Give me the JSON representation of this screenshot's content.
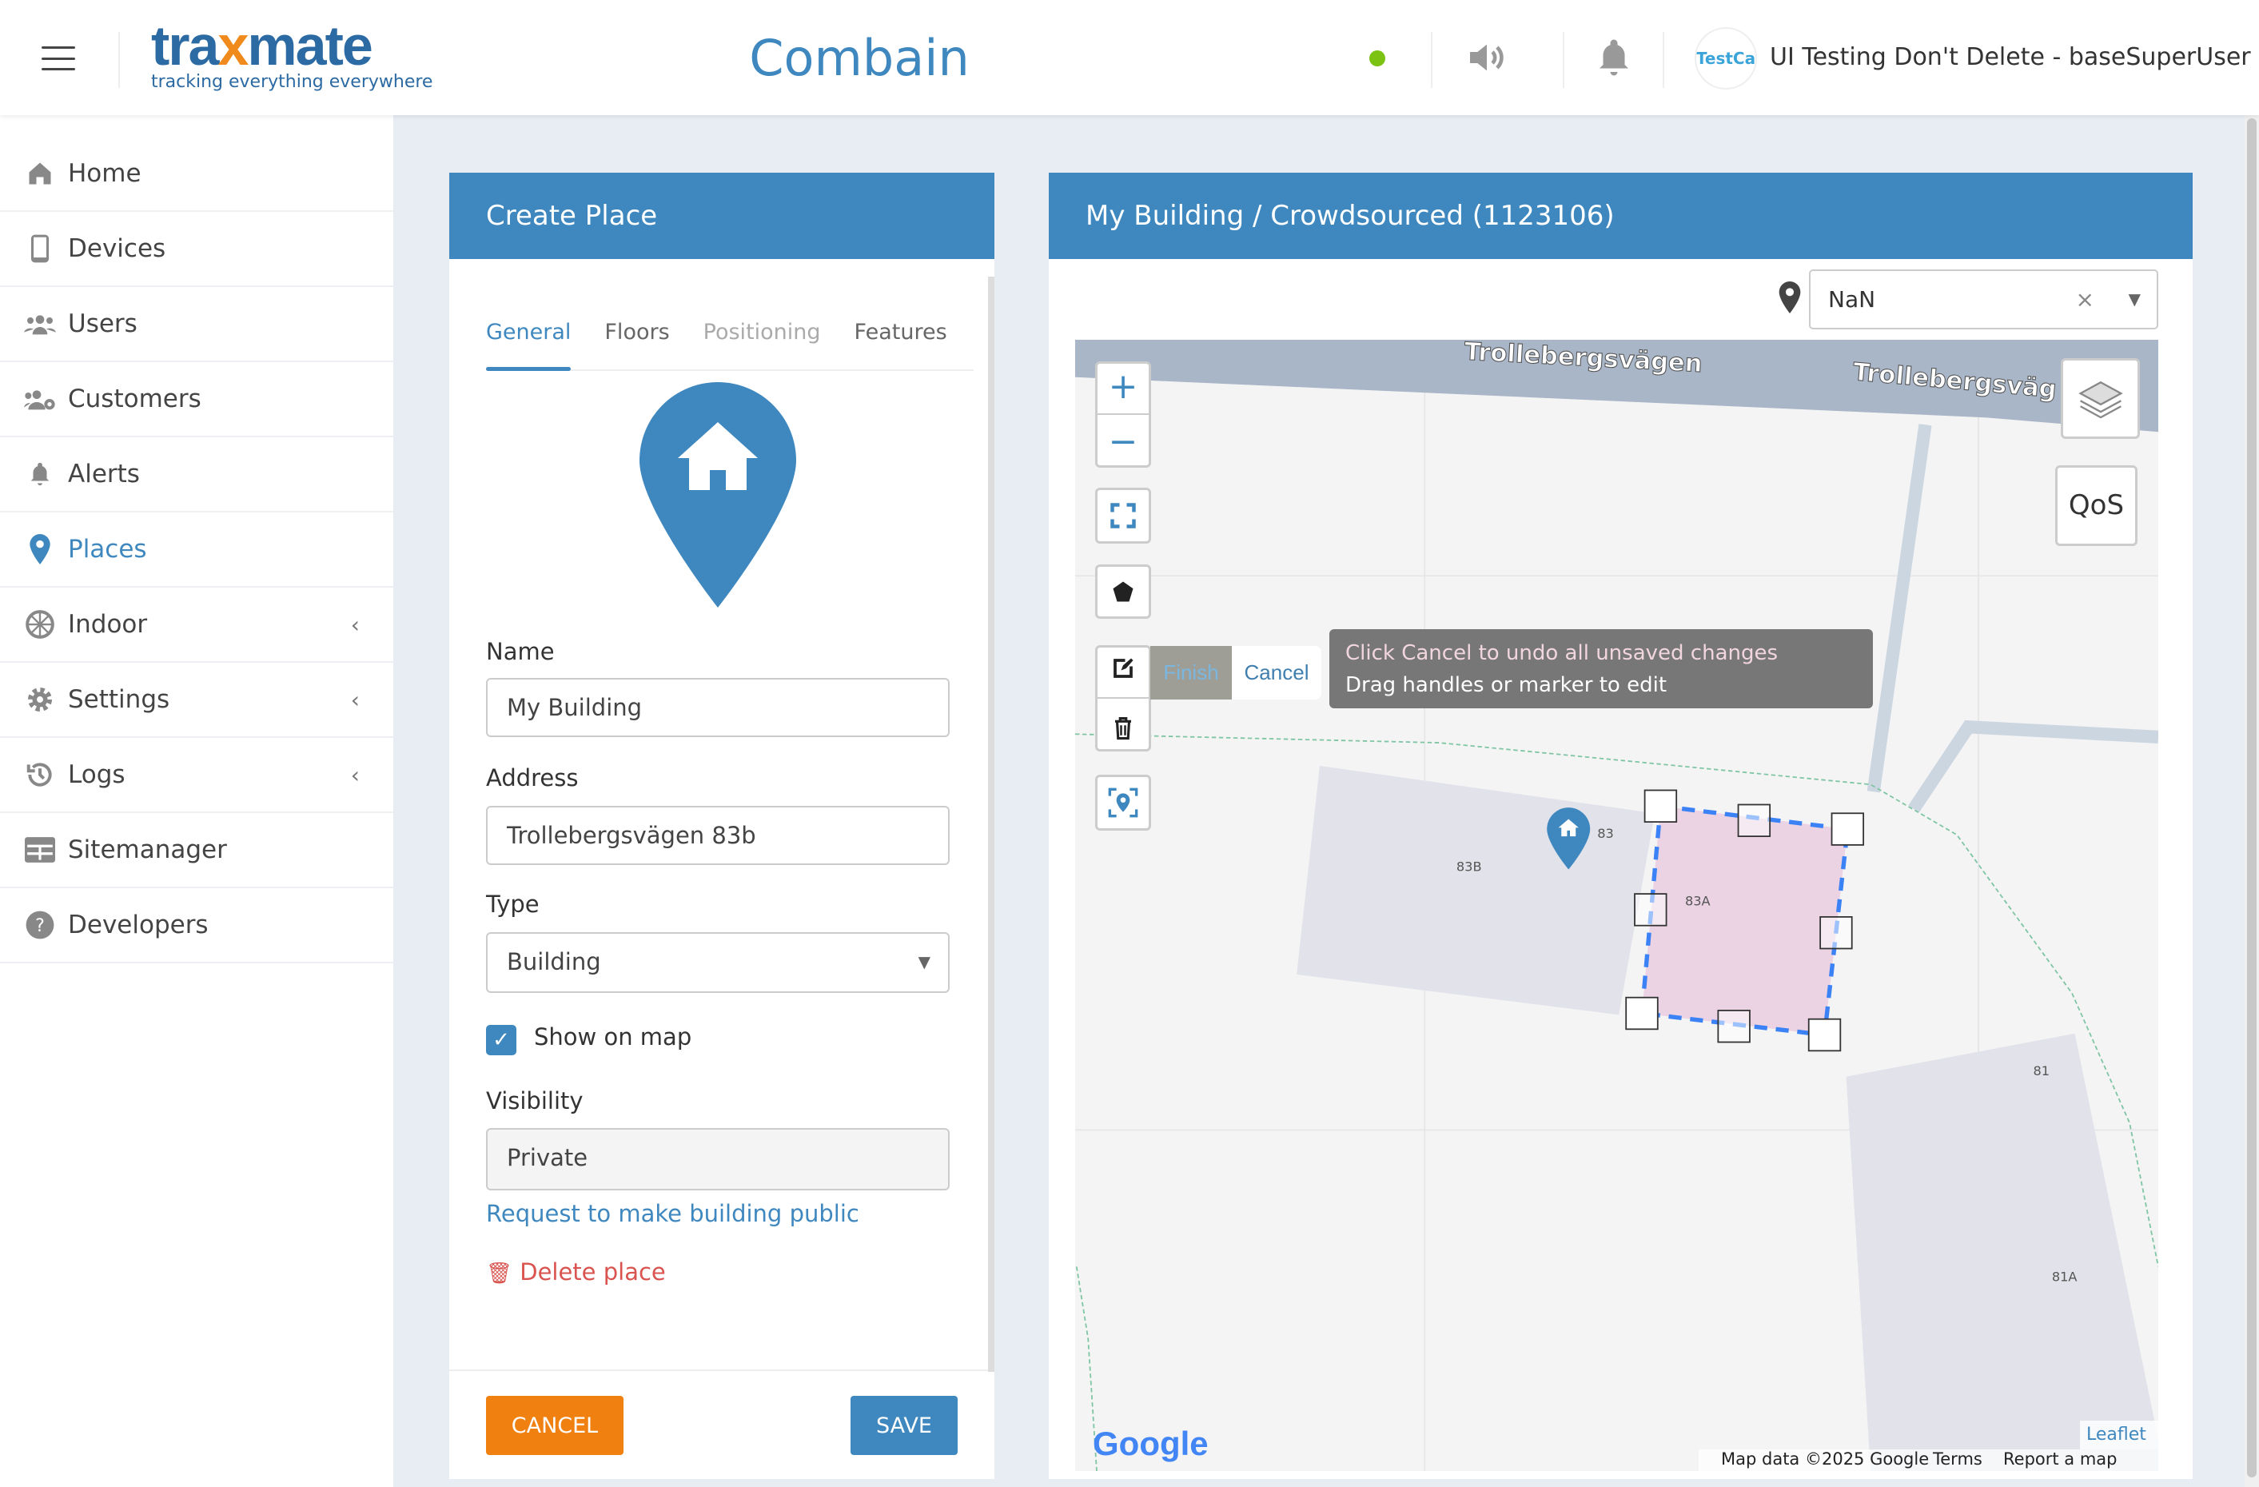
{
  "header": {
    "logo_prefix": "tra",
    "logo_x": "x",
    "logo_suffix": "mate",
    "logo_tagline": "tracking everything everywhere",
    "app_title": "Combain",
    "status_color": "#7cc212",
    "avatar_text": "TestCa",
    "user": "UI Testing Don't Delete - baseSuperUser"
  },
  "sidebar": {
    "items": [
      {
        "label": "Home",
        "icon": "home-icon"
      },
      {
        "label": "Devices",
        "icon": "phone-icon"
      },
      {
        "label": "Users",
        "icon": "users-icon"
      },
      {
        "label": "Customers",
        "icon": "customers-icon"
      },
      {
        "label": "Alerts",
        "icon": "bell-icon"
      },
      {
        "label": "Places",
        "icon": "map-pin-icon",
        "active": true
      },
      {
        "label": "Indoor",
        "icon": "globe-icon",
        "submenu": true
      },
      {
        "label": "Settings",
        "icon": "gear-icon",
        "submenu": true
      },
      {
        "label": "Logs",
        "icon": "history-icon",
        "submenu": true
      },
      {
        "label": "Sitemanager",
        "icon": "grid-icon"
      },
      {
        "label": "Developers",
        "icon": "help-icon"
      }
    ]
  },
  "create_place": {
    "title": "Create Place",
    "tabs": [
      "General",
      "Floors",
      "Positioning",
      "Features"
    ],
    "name_label": "Name",
    "name_value": "My Building",
    "address_label": "Address",
    "address_value": "Trollebergsvägen 83b",
    "type_label": "Type",
    "type_value": "Building",
    "show_on_map_label": "Show on map",
    "show_on_map": true,
    "visibility_label": "Visibility",
    "visibility_value": "Private",
    "request_public": "Request to make building public",
    "delete_place": "Delete place",
    "cancel": "CANCEL",
    "save": "SAVE",
    "accent": "#3f88bf",
    "cancel_color": "#f0800f",
    "delete_color": "#d9534f"
  },
  "map_panel": {
    "title": "My Building / Crowdsourced (1123106)",
    "floor_select": "NaN",
    "road_label_1": "Trollebergsvägen",
    "road_label_2": "Trollebergsväg",
    "labels": [
      "83",
      "83B",
      "83A",
      "81",
      "81A"
    ],
    "qos": "QoS",
    "finish": "Finish",
    "cancel": "Cancel",
    "tooltip_line1": "Click Cancel to undo all unsaved changes",
    "tooltip_line2": "Drag handles or marker to edit",
    "google": "Google",
    "attribution": "Map data ©2025 Google",
    "terms": "Terms",
    "report": "Report a map error",
    "leaflet": "Leaflet"
  }
}
